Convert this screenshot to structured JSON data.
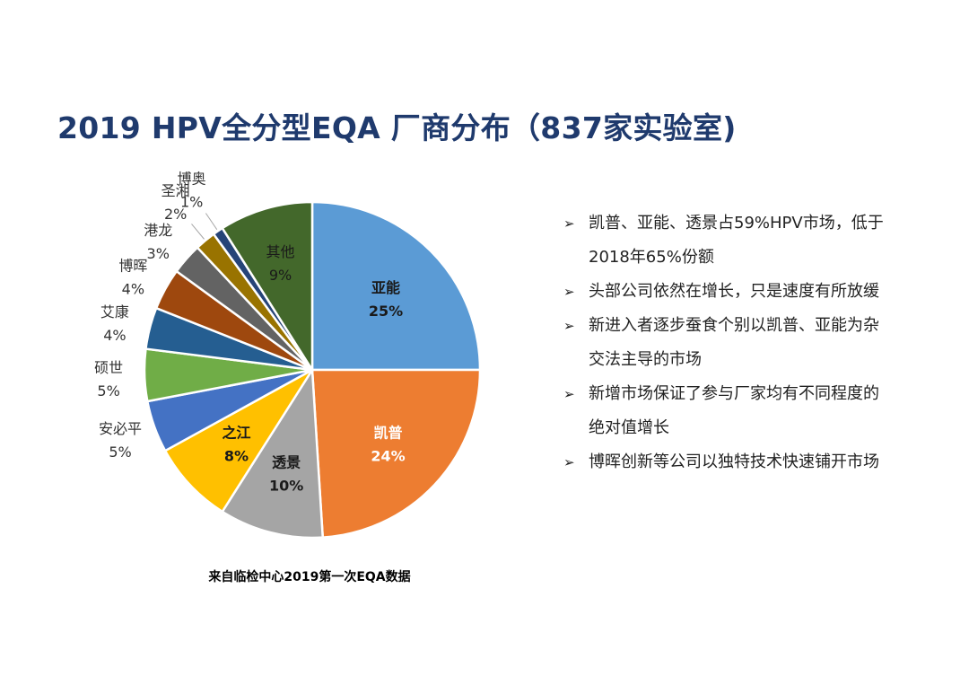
{
  "title": "2019 HPV全分型EQA 厂商分布（837家实验室)",
  "source_note": "来自临检中心2019第一次EQA数据",
  "bullets": [
    "凯普、亚能、透景占59%HPV市场，低于2018年65%份额",
    "头部公司依然在增长，只是速度有所放缓",
    "新进入者逐步蚕食个别以凯普、亚能为杂交法主导的市场",
    "新增市场保证了参与厂家均有不同程度的绝对值增长",
    "博晖创新等公司以独特技术快速铺开市场"
  ],
  "chart_data": {
    "type": "pie",
    "title": "",
    "slices": [
      {
        "label": "亚能",
        "value": 25,
        "display": "25%",
        "color": "#5b9bd5",
        "label_style": "inside-bold"
      },
      {
        "label": "凯普",
        "value": 24,
        "display": "24%",
        "color": "#ed7d31",
        "label_style": "inside-bold"
      },
      {
        "label": "透景",
        "value": 10,
        "display": "10%",
        "color": "#a5a5a5",
        "label_style": "inside-bold"
      },
      {
        "label": "之江",
        "value": 8,
        "display": "8%",
        "color": "#ffc000",
        "label_style": "inside-bold"
      },
      {
        "label": "安必平",
        "value": 5,
        "display": "5%",
        "color": "#4472c4",
        "label_style": "outside"
      },
      {
        "label": "硕世",
        "value": 5,
        "display": "5%",
        "color": "#70ad47",
        "label_style": "outside"
      },
      {
        "label": "艾康",
        "value": 4,
        "display": "4%",
        "color": "#255e91",
        "label_style": "outside"
      },
      {
        "label": "博晖",
        "value": 4,
        "display": "4%",
        "color": "#9e480e",
        "label_style": "outside"
      },
      {
        "label": "港龙",
        "value": 3,
        "display": "3%",
        "color": "#636363",
        "label_style": "outside"
      },
      {
        "label": "圣湘",
        "value": 2,
        "display": "2%",
        "color": "#997300",
        "label_style": "outside-leader"
      },
      {
        "label": "博奥",
        "value": 1,
        "display": "1%",
        "color": "#264478",
        "label_style": "outside-leader"
      },
      {
        "label": "其他",
        "value": 9,
        "display": "9%",
        "color": "#43682b",
        "label_style": "inside"
      }
    ]
  }
}
